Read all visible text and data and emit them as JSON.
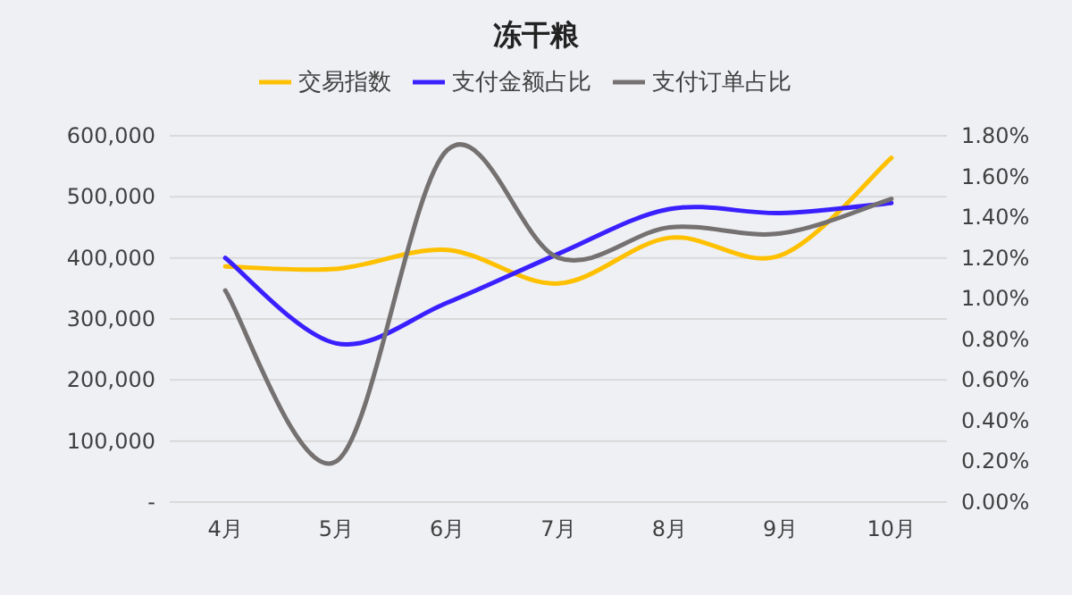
{
  "chart_data": {
    "type": "line",
    "title": "冻干粮",
    "categories": [
      "4月",
      "5月",
      "6月",
      "7月",
      "8月",
      "9月",
      "10月"
    ],
    "series": [
      {
        "name": "交易指数",
        "color": "#ffc000",
        "values": [
          386000,
          382000,
          413000,
          358000,
          433000,
          404000,
          564000
        ]
      },
      {
        "name": "支付金额占比",
        "color": "#3a1fff",
        "axis": "y2",
        "values": [
          1.2,
          0.78,
          0.98,
          1.22,
          1.44,
          1.42,
          1.47
        ]
      },
      {
        "name": "支付订单占比",
        "color": "#767171",
        "axis": "y2",
        "values": [
          1.04,
          0.2,
          1.73,
          1.2,
          1.35,
          1.32,
          1.49
        ]
      }
    ],
    "ylim": [
      0,
      600000
    ],
    "yticks": [
      {
        "value": 0,
        "label": "-"
      },
      {
        "value": 100000,
        "label": "100,000"
      },
      {
        "value": 200000,
        "label": "200,000"
      },
      {
        "value": 300000,
        "label": "300,000"
      },
      {
        "value": 400000,
        "label": "400,000"
      },
      {
        "value": 500000,
        "label": "500,000"
      },
      {
        "value": 600000,
        "label": "600,000"
      }
    ],
    "y2lim": [
      0,
      1.8
    ],
    "y2ticks": [
      {
        "value": 0,
        "label": "0.00%"
      },
      {
        "value": 0.2,
        "label": "0.20%"
      },
      {
        "value": 0.4,
        "label": "0.40%"
      },
      {
        "value": 0.6,
        "label": "0.60%"
      },
      {
        "value": 0.8,
        "label": "0.80%"
      },
      {
        "value": 1.0,
        "label": "1.00%"
      },
      {
        "value": 1.2,
        "label": "1.20%"
      },
      {
        "value": 1.4,
        "label": "1.40%"
      },
      {
        "value": 1.6,
        "label": "1.60%"
      },
      {
        "value": 1.8,
        "label": "1.80%"
      }
    ],
    "grid": "y",
    "legend": "top",
    "marker": "none",
    "line_style": "solid"
  }
}
